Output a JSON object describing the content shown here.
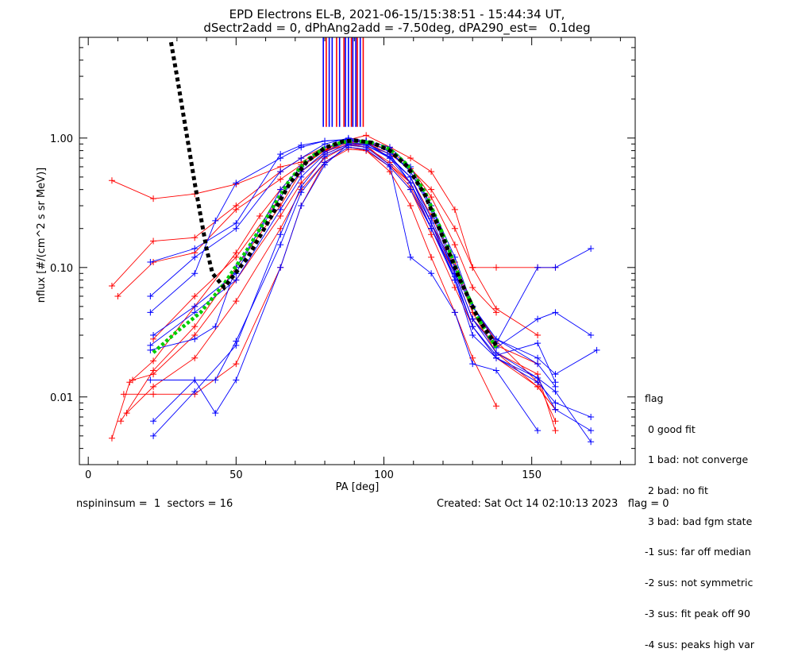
{
  "header": {
    "title_line1": "EPD Electrons EL-B, 2021-06-15/15:38:51 - 15:44:34 UT,",
    "title_line2": "dSectr2add = 0, dPhAng2add = -7.50deg, dPA290_est=   0.1deg"
  },
  "chart_data": {
    "type": "line",
    "xlabel": "PA [deg]",
    "ylabel": "nflux [#/(cm^2 s sr MeV)]",
    "xlim": [
      -3,
      185
    ],
    "ylim": [
      0.003,
      6.0
    ],
    "yscale": "log",
    "x_ticks": [
      0,
      50,
      100,
      150
    ],
    "y_ticks": [
      0.01,
      0.1,
      1.0
    ],
    "x_tick_labels": [
      "0",
      "50",
      "100",
      "150"
    ],
    "y_tick_labels": [
      "0.01",
      "0.10",
      "1.00"
    ],
    "colors": {
      "flag_red": "#ff0000",
      "flag_blue": "#0000ff",
      "model_green": "#00cc00",
      "model_black": "#000000"
    },
    "series": [
      {
        "color": "red",
        "x": [
          8,
          22,
          36,
          50,
          65,
          72,
          80,
          88,
          94,
          102,
          109,
          116,
          124,
          130,
          138,
          152,
          158
        ],
        "y": [
          0.47,
          0.34,
          0.37,
          0.44,
          0.6,
          0.65,
          0.82,
          0.97,
          1.05,
          0.85,
          0.7,
          0.55,
          0.28,
          0.1,
          0.1,
          0.1,
          0.1
        ]
      },
      {
        "color": "red",
        "x": [
          8,
          14,
          22,
          36,
          50,
          58,
          65,
          72,
          80,
          88,
          94,
          102,
          109,
          116,
          124,
          130,
          138,
          152,
          158
        ],
        "y": [
          0.0048,
          0.013,
          0.019,
          0.05,
          0.13,
          0.25,
          0.4,
          0.6,
          0.8,
          0.95,
          0.95,
          0.7,
          0.5,
          0.25,
          0.11,
          0.05,
          0.027,
          0.013,
          0.0065
        ]
      },
      {
        "color": "red",
        "x": [
          11,
          22,
          36,
          50,
          65,
          72,
          80,
          88,
          94,
          102,
          109,
          116,
          124,
          130,
          138,
          152,
          158
        ],
        "y": [
          0.0065,
          0.016,
          0.035,
          0.1,
          0.3,
          0.55,
          0.75,
          0.9,
          0.85,
          0.65,
          0.45,
          0.22,
          0.1,
          0.045,
          0.022,
          0.012,
          0.008
        ]
      },
      {
        "color": "red",
        "x": [
          12,
          22,
          36,
          50,
          65,
          72,
          80,
          88,
          94,
          102,
          109,
          116,
          124,
          130,
          138
        ],
        "y": [
          0.0105,
          0.0105,
          0.0105,
          0.018,
          0.1,
          0.3,
          0.65,
          0.85,
          0.8,
          0.55,
          0.3,
          0.12,
          0.045,
          0.02,
          0.0085
        ]
      },
      {
        "color": "red",
        "x": [
          8,
          22,
          36,
          50,
          65,
          72,
          80,
          88,
          94,
          102,
          109,
          116,
          124,
          130,
          138
        ],
        "y": [
          0.072,
          0.16,
          0.17,
          0.3,
          0.55,
          0.7,
          0.85,
          0.92,
          0.95,
          0.8,
          0.6,
          0.35,
          0.15,
          0.07,
          0.045
        ]
      },
      {
        "color": "red",
        "x": [
          10,
          22,
          36,
          50,
          65,
          72,
          80,
          88,
          94,
          102,
          109,
          116,
          124,
          130,
          138,
          152
        ],
        "y": [
          0.06,
          0.11,
          0.13,
          0.28,
          0.48,
          0.62,
          0.8,
          0.88,
          0.92,
          0.75,
          0.58,
          0.4,
          0.2,
          0.1,
          0.048,
          0.03
        ]
      },
      {
        "color": "red",
        "x": [
          22,
          36,
          50,
          65,
          72,
          80,
          88,
          94,
          102,
          109,
          116,
          124,
          130,
          138,
          152,
          158
        ],
        "y": [
          0.028,
          0.06,
          0.12,
          0.35,
          0.55,
          0.78,
          0.92,
          0.88,
          0.62,
          0.42,
          0.2,
          0.09,
          0.04,
          0.022,
          0.015,
          0.0055
        ]
      },
      {
        "color": "red",
        "x": [
          13,
          22,
          36,
          50,
          65,
          72,
          80,
          88,
          94,
          102,
          109,
          116,
          124,
          130,
          138,
          152,
          158
        ],
        "y": [
          0.0075,
          0.012,
          0.02,
          0.055,
          0.2,
          0.4,
          0.65,
          0.82,
          0.8,
          0.6,
          0.4,
          0.18,
          0.07,
          0.035,
          0.02,
          0.012,
          0.008
        ]
      },
      {
        "color": "red",
        "x": [
          15,
          22,
          36,
          50,
          65,
          72,
          80,
          88,
          94,
          102,
          109,
          116,
          124,
          130,
          138,
          152
        ],
        "y": [
          0.0135,
          0.015,
          0.03,
          0.08,
          0.25,
          0.45,
          0.7,
          0.88,
          0.85,
          0.62,
          0.45,
          0.2,
          0.09,
          0.04,
          0.025,
          0.018
        ]
      },
      {
        "color": "blue",
        "x": [
          21,
          36,
          50,
          65,
          72,
          80,
          88,
          94,
          102,
          109,
          116,
          124,
          130,
          138,
          152,
          158,
          170
        ],
        "y": [
          0.11,
          0.14,
          0.22,
          0.75,
          0.88,
          0.95,
          0.98,
          0.95,
          0.85,
          0.6,
          0.3,
          0.1,
          0.05,
          0.026,
          0.1,
          0.1,
          0.14
        ]
      },
      {
        "color": "blue",
        "x": [
          21,
          36,
          43,
          50,
          65,
          72,
          80,
          88,
          94,
          102,
          109,
          116,
          124,
          130,
          138,
          152,
          158,
          170
        ],
        "y": [
          0.023,
          0.028,
          0.035,
          0.1,
          0.35,
          0.55,
          0.78,
          0.95,
          0.92,
          0.7,
          0.5,
          0.22,
          0.08,
          0.03,
          0.02,
          0.014,
          0.011,
          0.0045
        ]
      },
      {
        "color": "blue",
        "x": [
          21,
          36,
          50,
          65,
          72,
          80,
          88,
          94,
          102,
          109,
          116,
          124,
          130,
          138,
          152,
          158
        ],
        "y": [
          0.06,
          0.12,
          0.2,
          0.55,
          0.7,
          0.9,
          1.0,
          0.95,
          0.78,
          0.55,
          0.28,
          0.09,
          0.05,
          0.028,
          0.018,
          0.012
        ]
      },
      {
        "color": "blue",
        "x": [
          21,
          36,
          43,
          50,
          65,
          72,
          80,
          88,
          94,
          102,
          109,
          116,
          124,
          130,
          138,
          152,
          158,
          170
        ],
        "y": [
          0.0135,
          0.0135,
          0.0135,
          0.027,
          0.15,
          0.38,
          0.65,
          0.85,
          0.82,
          0.6,
          0.4,
          0.2,
          0.085,
          0.035,
          0.02,
          0.013,
          0.009,
          0.007
        ]
      },
      {
        "color": "blue",
        "x": [
          22,
          36,
          43,
          50,
          65,
          72,
          80,
          88,
          94,
          102,
          109,
          116,
          124,
          130,
          138,
          152,
          158,
          170
        ],
        "y": [
          0.0065,
          0.0135,
          0.0075,
          0.0135,
          0.1,
          0.3,
          0.62,
          0.9,
          0.88,
          0.7,
          0.45,
          0.22,
          0.09,
          0.04,
          0.022,
          0.014,
          0.008,
          0.0055
        ]
      },
      {
        "color": "blue",
        "x": [
          21,
          36,
          43,
          50,
          65,
          72,
          80,
          88,
          94,
          102,
          109,
          116,
          124,
          130,
          138,
          152,
          158,
          172
        ],
        "y": [
          0.045,
          0.09,
          0.23,
          0.45,
          0.7,
          0.85,
          0.95,
          0.97,
          0.92,
          0.8,
          0.55,
          0.3,
          0.12,
          0.05,
          0.028,
          0.02,
          0.015,
          0.023
        ]
      },
      {
        "color": "blue",
        "x": [
          22,
          36,
          50,
          65,
          72,
          80,
          88,
          94,
          102,
          109,
          116,
          124,
          130,
          138,
          152,
          158
        ],
        "y": [
          0.03,
          0.05,
          0.09,
          0.4,
          0.6,
          0.85,
          0.92,
          0.9,
          0.75,
          0.45,
          0.2,
          0.08,
          0.035,
          0.021,
          0.026,
          0.013
        ]
      },
      {
        "color": "blue",
        "x": [
          22,
          36,
          50,
          65,
          72,
          80,
          88,
          94,
          102,
          109,
          116,
          124,
          130,
          138,
          152
        ],
        "y": [
          0.005,
          0.011,
          0.025,
          0.18,
          0.42,
          0.72,
          0.88,
          0.85,
          0.62,
          0.12,
          0.09,
          0.045,
          0.018,
          0.016,
          0.0055
        ]
      },
      {
        "color": "blue",
        "x": [
          21,
          36,
          50,
          65,
          72,
          80,
          88,
          94,
          102,
          109,
          116,
          124,
          130,
          138,
          152,
          158,
          170
        ],
        "y": [
          0.025,
          0.045,
          0.08,
          0.28,
          0.5,
          0.75,
          0.9,
          0.88,
          0.72,
          0.5,
          0.24,
          0.09,
          0.04,
          0.024,
          0.04,
          0.045,
          0.03
        ]
      }
    ],
    "model_green": {
      "x": [
        22,
        30,
        38,
        46,
        54,
        62,
        68,
        74,
        80,
        86,
        90,
        96,
        102,
        108,
        114,
        120,
        126,
        132,
        138
      ],
      "y": [
        0.022,
        0.032,
        0.045,
        0.075,
        0.14,
        0.28,
        0.47,
        0.68,
        0.84,
        0.93,
        0.95,
        0.92,
        0.82,
        0.62,
        0.38,
        0.18,
        0.08,
        0.04,
        0.024
      ]
    },
    "model_black": {
      "x": [
        28,
        30,
        32,
        34,
        36,
        38,
        40,
        42,
        46,
        54,
        62,
        68,
        74,
        80,
        86,
        90,
        96,
        102,
        108,
        114,
        120,
        126,
        132,
        138
      ],
      "y": [
        5.5,
        3.0,
        1.6,
        0.85,
        0.45,
        0.25,
        0.14,
        0.09,
        0.07,
        0.12,
        0.25,
        0.44,
        0.66,
        0.84,
        0.94,
        0.96,
        0.92,
        0.8,
        0.6,
        0.36,
        0.17,
        0.078,
        0.04,
        0.025
      ]
    },
    "vlines": [
      {
        "x": 79.5,
        "color": "blue"
      },
      {
        "x": 80.5,
        "color": "red"
      },
      {
        "x": 81.5,
        "color": "blue"
      },
      {
        "x": 82.5,
        "color": "blue"
      },
      {
        "x": 84.0,
        "color": "red"
      },
      {
        "x": 85.0,
        "color": "blue"
      },
      {
        "x": 86.5,
        "color": "red"
      },
      {
        "x": 87.0,
        "color": "blue"
      },
      {
        "x": 88.0,
        "color": "blue"
      },
      {
        "x": 89.0,
        "color": "red"
      },
      {
        "x": 89.5,
        "color": "blue"
      },
      {
        "x": 90.5,
        "color": "blue"
      },
      {
        "x": 91.0,
        "color": "red"
      },
      {
        "x": 92.0,
        "color": "blue"
      },
      {
        "x": 93.0,
        "color": "red"
      }
    ]
  },
  "footer": {
    "left": "nspininsum =  1  sectors = 16",
    "right": "Created: Sat Oct 14 02:10:13 2023   flag = 0"
  },
  "legend": {
    "title": "flag",
    "items": [
      " 0 good fit",
      " 1 bad: not converge",
      " 2 bad: no fit",
      " 3 bad: bad fgm state",
      "-1 sus: far off median",
      "-2 sus: not symmetric",
      "-3 sus: fit peak off 90",
      "-4 sus: peaks high var"
    ]
  }
}
